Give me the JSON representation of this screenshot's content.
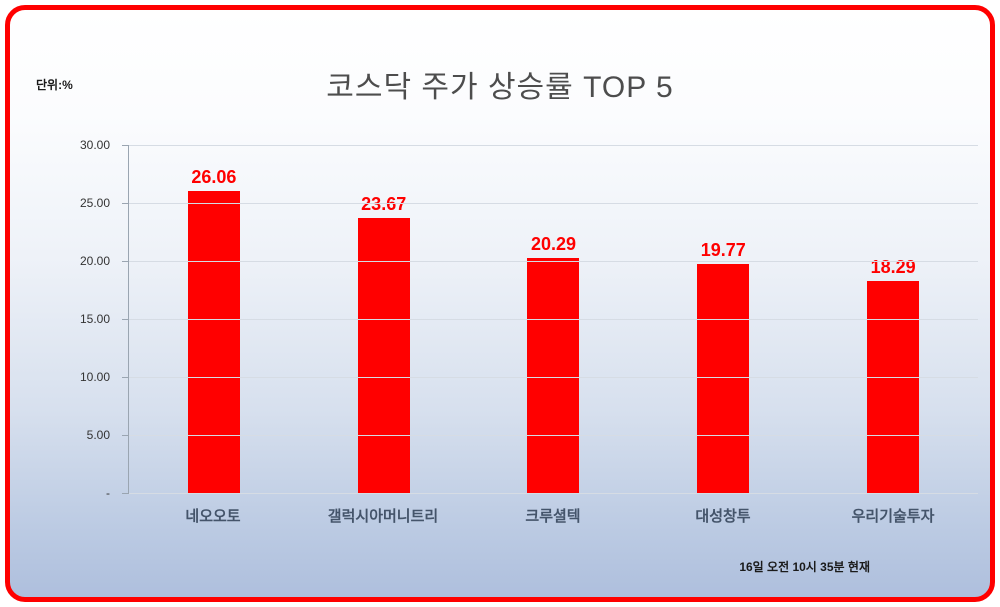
{
  "title": "코스닥 주가 상승률 TOP 5",
  "unit_label": "단위:%",
  "footnote": "16일 오전 10시 35분 현재",
  "colors": {
    "frame_border": "#ff0000",
    "bar": "#ff0000",
    "value_label": "#ff0000",
    "category_label": "#44546a",
    "title_text": "#4d4d4d",
    "gridline": "#d6dce4"
  },
  "chart_data": {
    "type": "bar",
    "title": "코스닥 주가 상승률 TOP 5",
    "unit": "%",
    "categories": [
      "네오오토",
      "갤럭시아머니트리",
      "크루셜텍",
      "대성창투",
      "우리기술투자"
    ],
    "values": [
      26.06,
      23.67,
      20.29,
      19.77,
      18.29
    ],
    "value_labels": [
      "26.06",
      "23.67",
      "20.29",
      "19.77",
      "18.29"
    ],
    "ylim": [
      0,
      30
    ],
    "ytick_values": [
      30,
      25,
      20,
      15,
      10,
      5,
      0
    ],
    "ytick_labels": [
      "30.00",
      "25.00",
      "20.00",
      "15.00",
      "10.00",
      "5.00",
      "-"
    ],
    "grid": true,
    "legend": false,
    "bar_color": "#ff0000",
    "annotation": "16일 오전 10시 35분 현재"
  }
}
